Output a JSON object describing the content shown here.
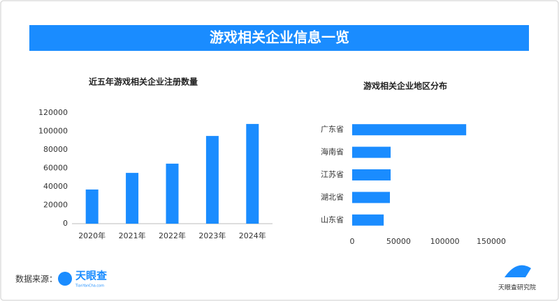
{
  "header": {
    "title": "游戏相关企业信息一览"
  },
  "chart_data": [
    {
      "type": "bar",
      "title": "近五年游戏相关企业注册数量",
      "categories": [
        "2020年",
        "2021年",
        "2022年",
        "2023年",
        "2024年"
      ],
      "values": [
        37000,
        55000,
        65000,
        95000,
        108000
      ],
      "color": "#1a8cff",
      "ylim": [
        0,
        120000
      ],
      "yticks": [
        0,
        20000,
        40000,
        60000,
        80000,
        100000,
        120000
      ],
      "grid": false
    },
    {
      "type": "barh",
      "title": "游戏相关企业地区分布",
      "categories": [
        "广东省",
        "海南省",
        "江苏省",
        "湖北省",
        "山东省"
      ],
      "values": [
        123000,
        41500,
        41500,
        40700,
        34000
      ],
      "color": "#1a8cff",
      "xlim": [
        0,
        150000
      ],
      "xticks": [
        0,
        50000,
        100000,
        150000
      ],
      "grid": false
    }
  ],
  "footer": {
    "source_label": "数据来源：",
    "source_logo": "天眼查",
    "source_logo_sub": "TianYanCha.com",
    "brand": "天眼查研究院"
  }
}
